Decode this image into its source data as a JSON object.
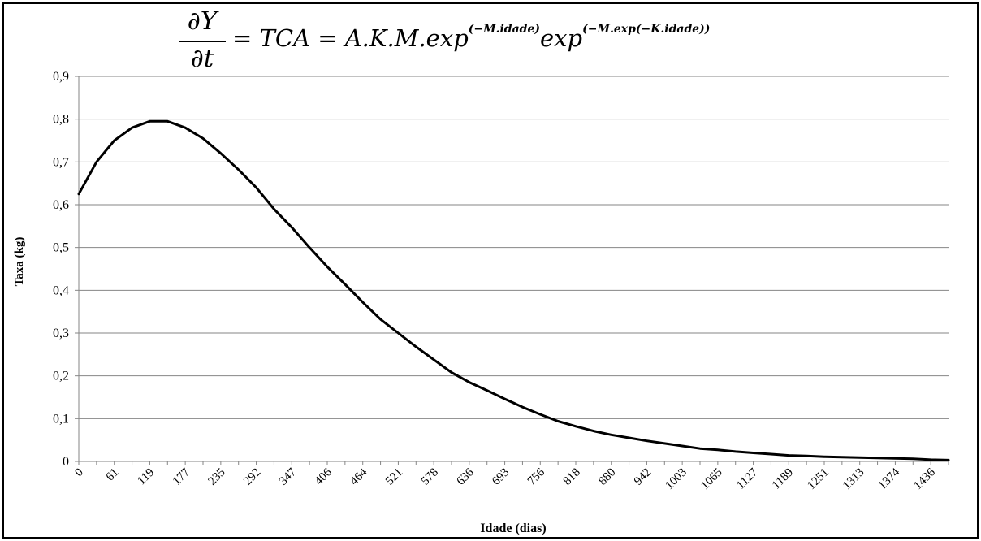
{
  "chart_data": {
    "type": "line",
    "formula": {
      "numerator": "∂Y",
      "denominator": "∂t",
      "rhs_main": "= TCA = A.K.M.exp",
      "exp1": "(−M.idade)",
      "rhs_second": "exp",
      "exp2": "(−M.exp(−K.idade))"
    },
    "xlabel": "Idade (dias)",
    "ylabel": "Taxa (kg)",
    "ylim": [
      0,
      0.9
    ],
    "y_ticks": [
      "0",
      "0,1",
      "0,2",
      "0,3",
      "0,4",
      "0,5",
      "0,6",
      "0,7",
      "0,8",
      "0,9"
    ],
    "y_tick_values": [
      0,
      0.1,
      0.2,
      0.3,
      0.4,
      0.5,
      0.6,
      0.7,
      0.8,
      0.9
    ],
    "x_tick_labels": [
      "0",
      "61",
      "119",
      "177",
      "235",
      "292",
      "347",
      "406",
      "464",
      "521",
      "578",
      "636",
      "693",
      "756",
      "818",
      "880",
      "942",
      "1003",
      "1065",
      "1127",
      "1189",
      "1251",
      "1313",
      "1374",
      "1436"
    ],
    "grid": true,
    "line_color": "#000000",
    "series": [
      {
        "values": [
          0.625,
          0.7,
          0.75,
          0.78,
          0.795,
          0.795,
          0.78,
          0.755,
          0.72,
          0.682,
          0.64,
          0.59,
          0.547,
          0.5,
          0.455,
          0.414,
          0.372,
          0.332,
          0.3,
          0.268,
          0.238,
          0.208,
          0.185,
          0.166,
          0.146,
          0.127,
          0.11,
          0.094,
          0.082,
          0.071,
          0.062,
          0.055,
          0.048,
          0.042,
          0.036,
          0.03,
          0.027,
          0.023,
          0.02,
          0.017,
          0.014,
          0.013,
          0.011,
          0.01,
          0.009,
          0.008,
          0.007,
          0.006,
          0.004,
          0.003
        ]
      }
    ]
  }
}
